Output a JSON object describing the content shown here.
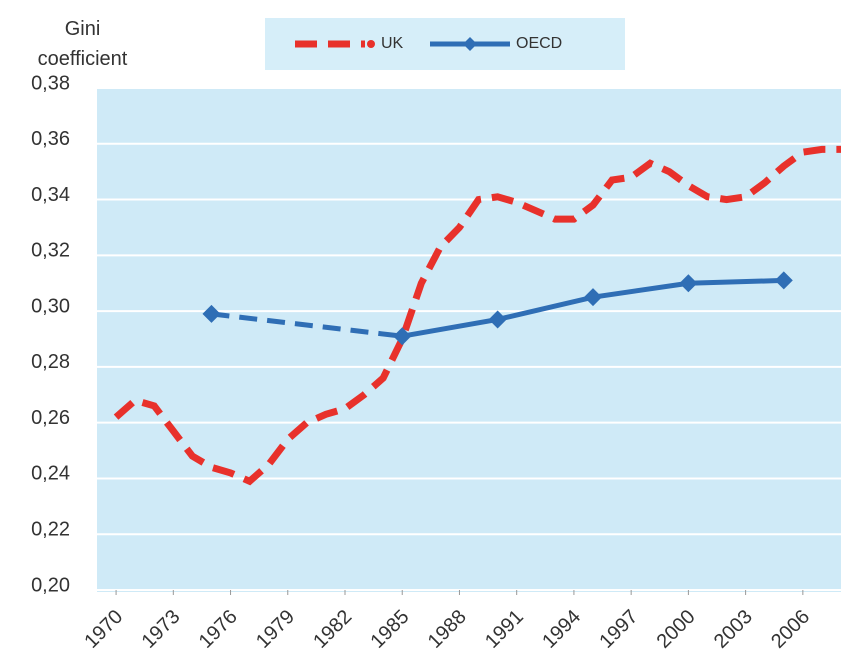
{
  "chart_data": {
    "type": "line",
    "ylabel": "Gini coefficient",
    "xlim": [
      1969,
      2008
    ],
    "xticks": [
      1970,
      1973,
      1976,
      1979,
      1982,
      1985,
      1988,
      1991,
      1994,
      1997,
      2000,
      2003,
      2006
    ],
    "ylim": [
      0.2,
      0.38
    ],
    "yticks": [
      {
        "value": 0.2,
        "label": "0,20"
      },
      {
        "value": 0.22,
        "label": "0,22"
      },
      {
        "value": 0.24,
        "label": "0,24"
      },
      {
        "value": 0.26,
        "label": "0,26"
      },
      {
        "value": 0.28,
        "label": "0,28"
      },
      {
        "value": 0.3,
        "label": "0,30"
      },
      {
        "value": 0.32,
        "label": "0,32"
      },
      {
        "value": 0.34,
        "label": "0,34"
      },
      {
        "value": 0.36,
        "label": "0,36"
      },
      {
        "value": 0.38,
        "label": "0,38"
      }
    ],
    "grid": true,
    "legend": "top",
    "series": [
      {
        "name": "UK",
        "color": "#e8312b",
        "style": "dashed",
        "x": [
          1970,
          1971,
          1972,
          1973,
          1974,
          1975,
          1976,
          1977,
          1978,
          1979,
          1980,
          1981,
          1982,
          1983,
          1984,
          1985,
          1986,
          1987,
          1988,
          1989,
          1990,
          1991,
          1992,
          1993,
          1994,
          1995,
          1996,
          1997,
          1998,
          1999,
          2000,
          2001,
          2002,
          2003,
          2004,
          2005,
          2006,
          2007,
          2008
        ],
        "values": [
          0.262,
          0.268,
          0.266,
          0.257,
          0.248,
          0.244,
          0.242,
          0.239,
          0.245,
          0.254,
          0.26,
          0.263,
          0.265,
          0.27,
          0.276,
          0.29,
          0.31,
          0.323,
          0.33,
          0.34,
          0.341,
          0.339,
          0.336,
          0.333,
          0.333,
          0.338,
          0.347,
          0.348,
          0.353,
          0.35,
          0.345,
          0.341,
          0.34,
          0.341,
          0.346,
          0.352,
          0.357,
          0.358,
          0.358
        ]
      },
      {
        "name": "OECD",
        "color": "#2f6eb5",
        "style": "solid",
        "markers": true,
        "dash_segments": [
          0
        ],
        "x": [
          1975,
          1985,
          1990,
          1995,
          2000,
          2005
        ],
        "values": [
          0.299,
          0.291,
          0.297,
          0.305,
          0.31,
          0.311
        ]
      }
    ]
  }
}
